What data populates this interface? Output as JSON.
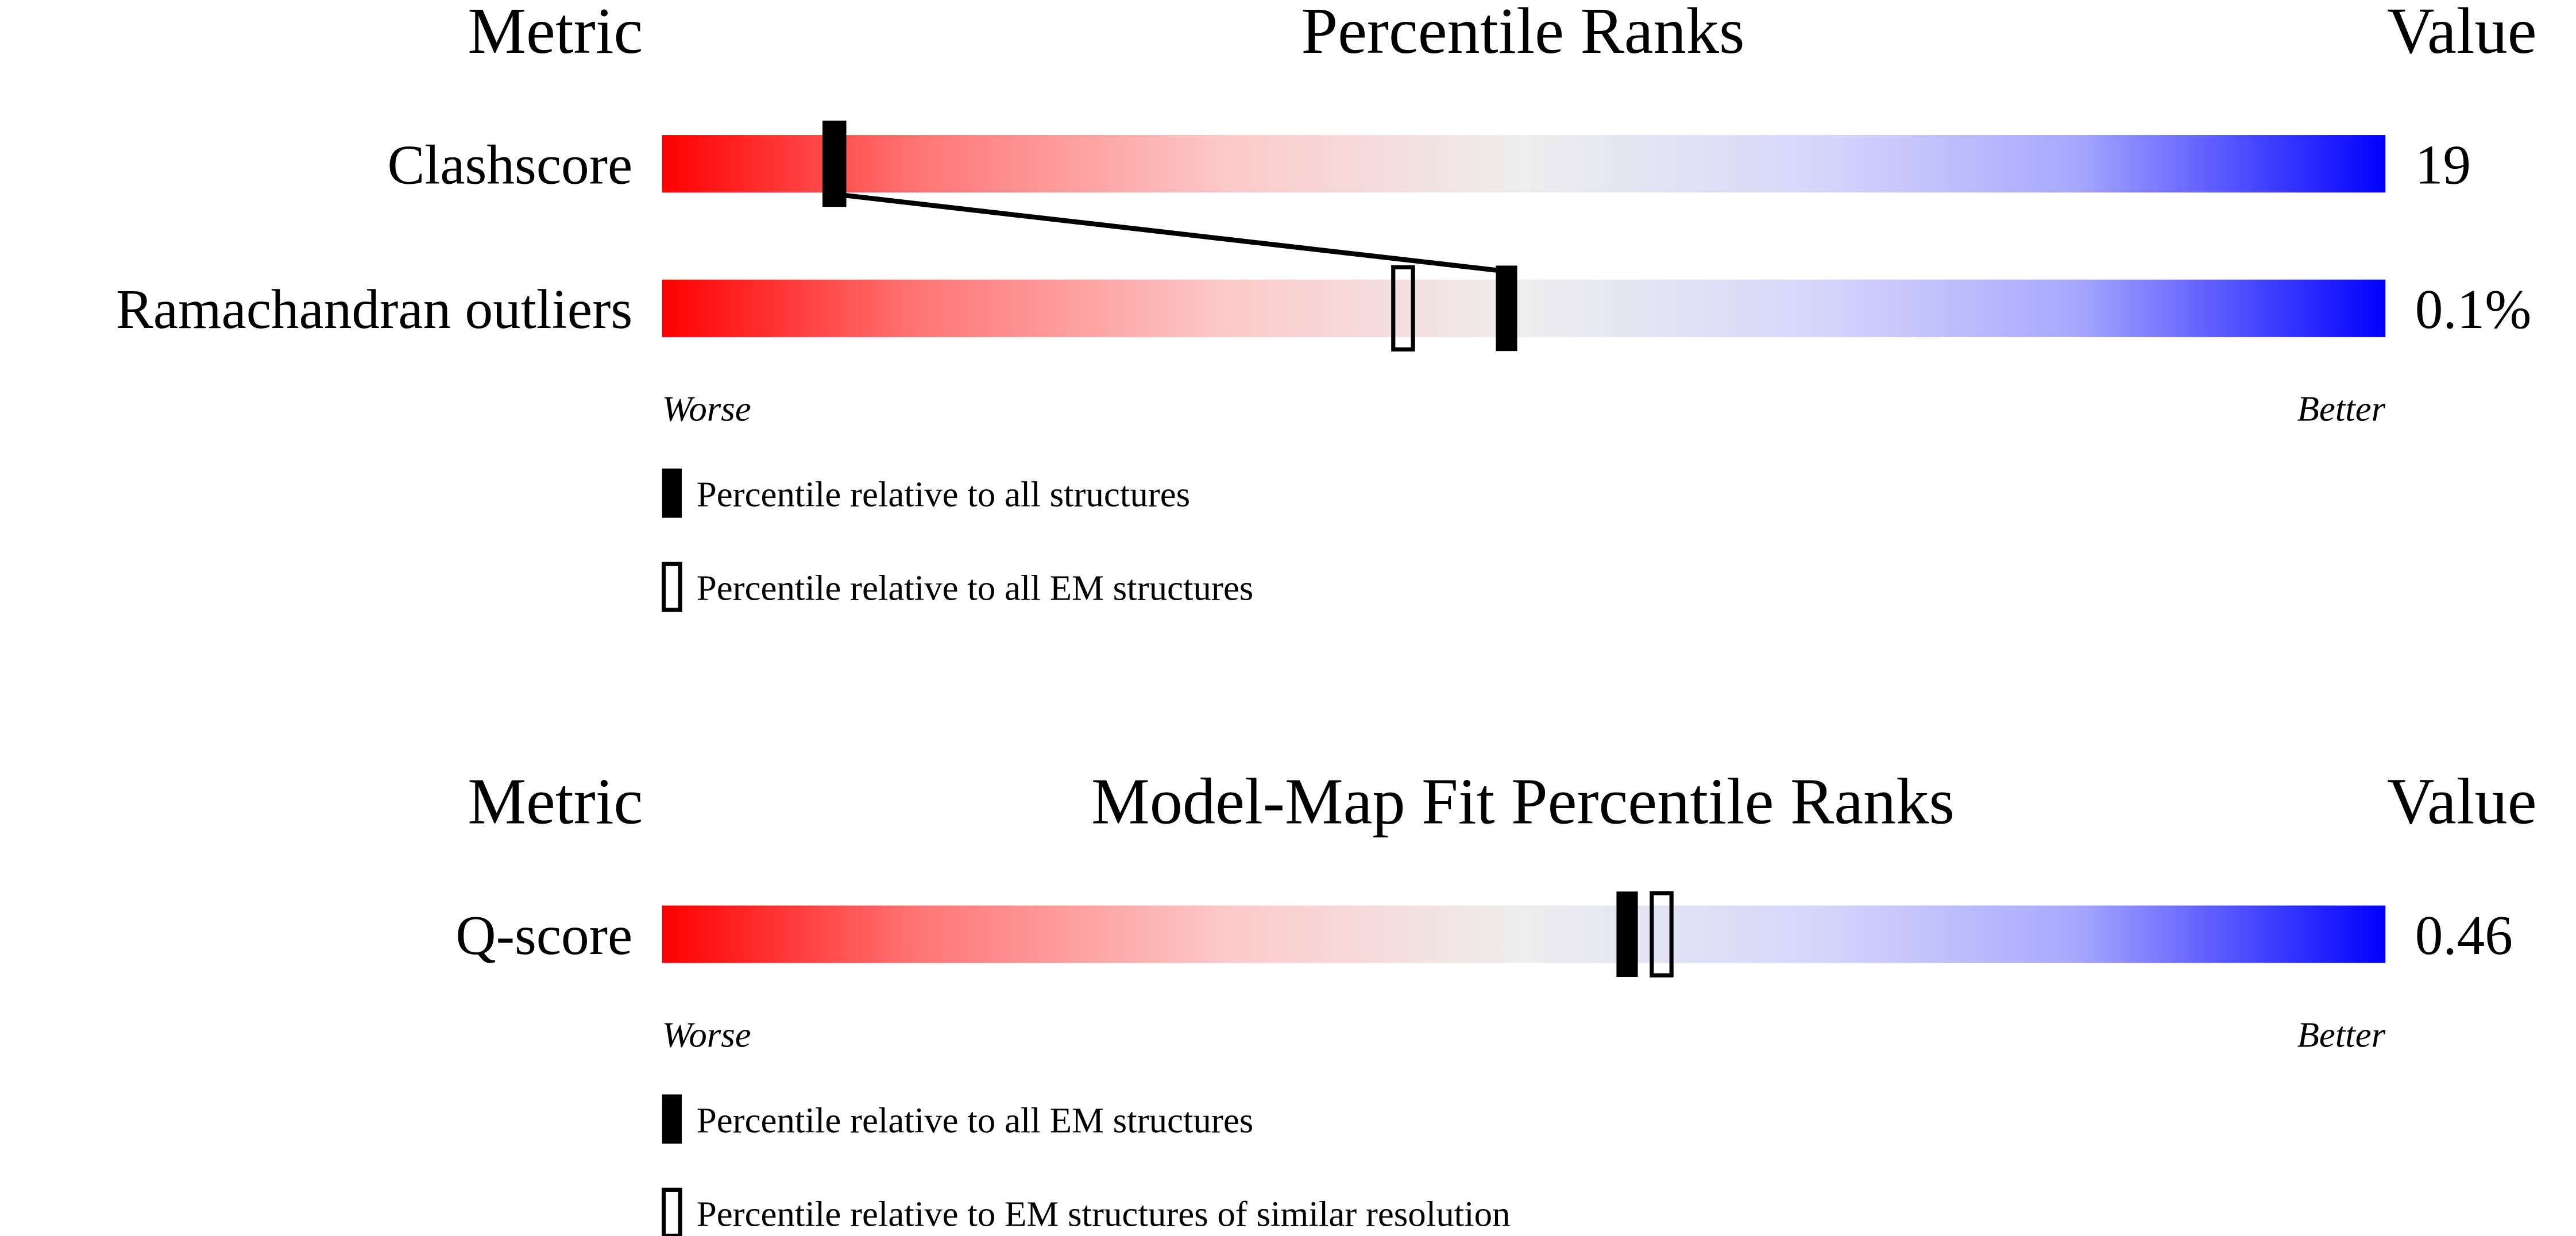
{
  "panels": [
    {
      "headers": {
        "metric": "Metric",
        "title": "Percentile Ranks",
        "value": "Value"
      },
      "xlim": [
        0,
        100
      ],
      "connect": true,
      "rows": [
        {
          "metric": "Clashscore",
          "value": "19",
          "percentiles": [
            10,
            10
          ]
        },
        {
          "metric": "Ramachandran outliers",
          "value": "0.1%",
          "percentiles": [
            49,
            43
          ]
        }
      ],
      "scale": {
        "worse": "Worse",
        "better": "Better"
      },
      "legend": [
        {
          "marker": "filled",
          "label": "Percentile relative to all structures"
        },
        {
          "marker": "open",
          "label": "Percentile relative to all EM structures"
        }
      ]
    },
    {
      "headers": {
        "metric": "Metric",
        "title": "Model-Map Fit Percentile Ranks",
        "value": "Value"
      },
      "xlim": [
        0,
        100
      ],
      "connect": false,
      "rows": [
        {
          "metric": "Q-score",
          "value": "0.46",
          "percentiles": [
            56,
            58
          ]
        }
      ],
      "scale": {
        "worse": "Worse",
        "better": "Better"
      },
      "legend": [
        {
          "marker": "filled",
          "label": "Percentile relative to all EM structures"
        },
        {
          "marker": "open",
          "label": "Percentile relative to EM structures of similar resolution"
        }
      ]
    }
  ]
}
